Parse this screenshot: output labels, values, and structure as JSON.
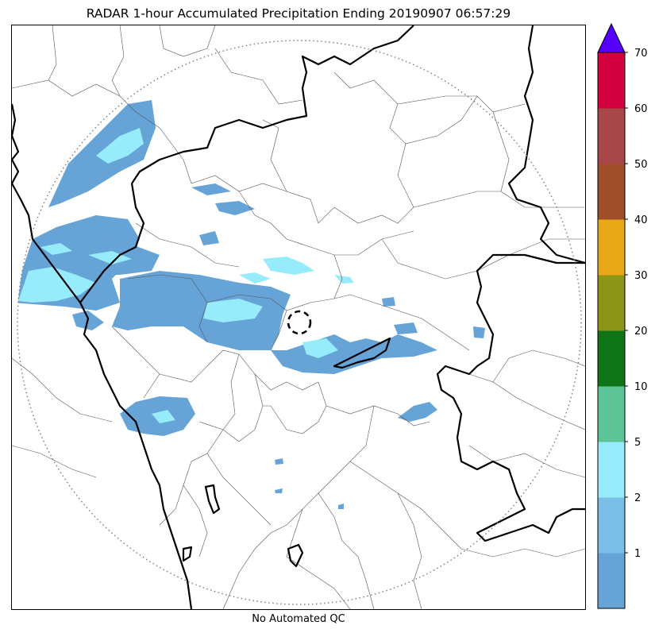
{
  "title": "RADAR 1-hour Accumulated Precipitation Ending 20190907 06:57:29",
  "footer": "No Automated QC",
  "colorbar": {
    "levels": [
      {
        "from": 0,
        "to": 1,
        "color": "#66a3d6"
      },
      {
        "from": 1,
        "to": 2,
        "color": "#7bbfe6"
      },
      {
        "from": 2,
        "to": 5,
        "color": "#97ecfb"
      },
      {
        "from": 5,
        "to": 10,
        "color": "#5dc497"
      },
      {
        "from": 10,
        "to": 20,
        "color": "#0f7418"
      },
      {
        "from": 20,
        "to": 30,
        "color": "#8c9515"
      },
      {
        "from": 30,
        "to": 40,
        "color": "#e8a817"
      },
      {
        "from": 40,
        "to": 50,
        "color": "#a04d2b"
      },
      {
        "from": 50,
        "to": 60,
        "color": "#a84747"
      },
      {
        "from": 60,
        "to": 70,
        "color": "#d2003f"
      }
    ],
    "tick_labels": [
      "1",
      "2",
      "5",
      "10",
      "20",
      "30",
      "40",
      "50",
      "60",
      "70"
    ],
    "extend_color": "#5500ff"
  },
  "colors": {
    "rain_light": "#66a3d6",
    "rain_medium": "#97ecfb",
    "boundary_state": "#000000",
    "boundary_district": "#555555",
    "range_ring": "#808080"
  }
}
